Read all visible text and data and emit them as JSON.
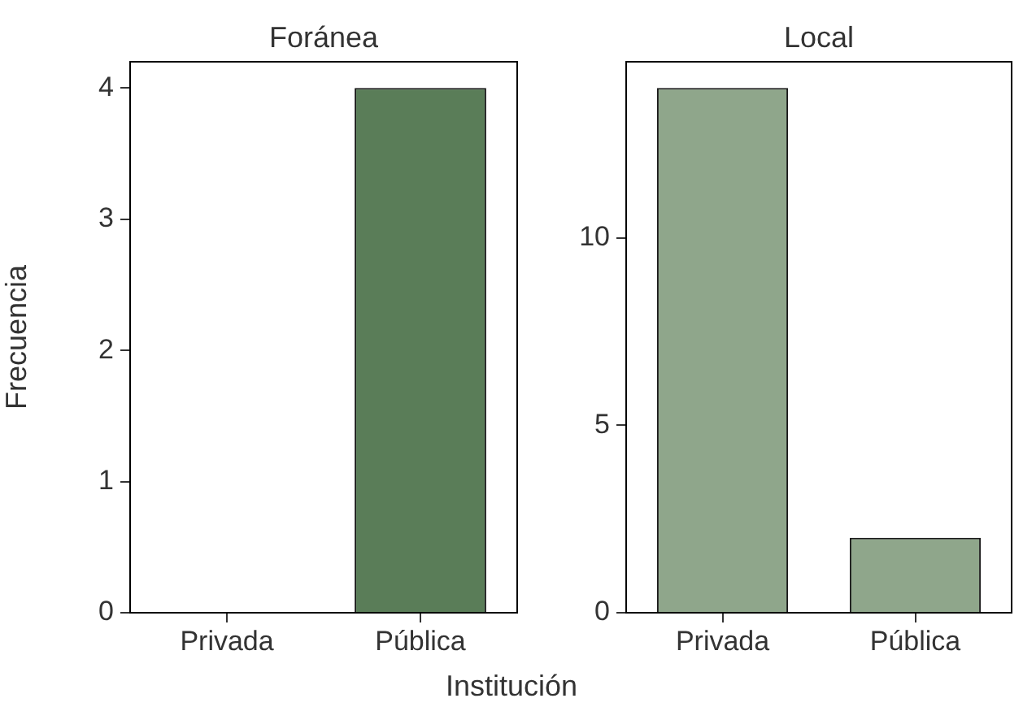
{
  "chart_data": [
    {
      "type": "bar",
      "title": "Foránea",
      "ylabel": "Frecuencia",
      "categories": [
        "Privada",
        "Pública"
      ],
      "values": [
        0,
        4
      ],
      "colors": [
        "#5a7d58",
        "#5a7d58"
      ],
      "ylim": [
        0,
        4.2
      ],
      "yticks": [
        0,
        1,
        2,
        3,
        4
      ],
      "grid": false,
      "legend": false
    },
    {
      "type": "bar",
      "title": "Local",
      "xlabel": "Institución",
      "categories": [
        "Privada",
        "Pública"
      ],
      "values": [
        14,
        2
      ],
      "colors": [
        "#8fa68b",
        "#8fa68b"
      ],
      "ylim": [
        0,
        14.7
      ],
      "yticks": [
        0,
        5,
        10
      ],
      "grid": false,
      "legend": false
    }
  ]
}
